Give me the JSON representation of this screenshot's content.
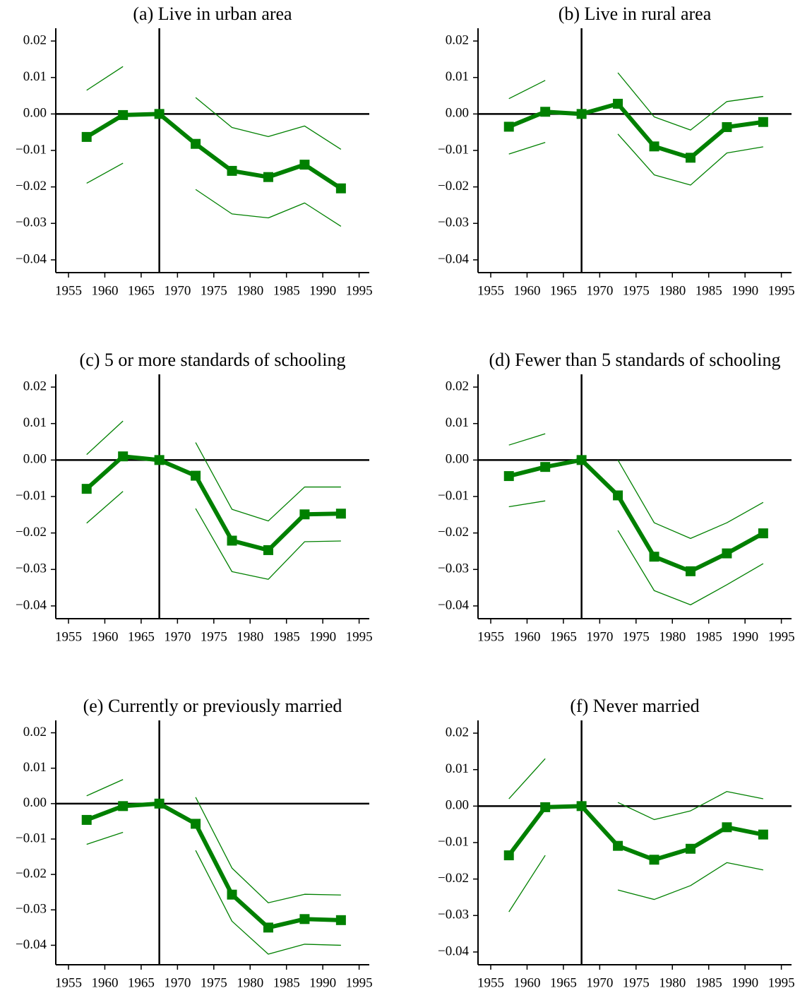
{
  "chart_data": [
    {
      "type": "line",
      "title": "(a) Live in urban area",
      "x": [
        1957.5,
        1962.5,
        1967.5,
        1972.5,
        1977.5,
        1982.5,
        1987.5,
        1992.5
      ],
      "series": [
        {
          "color": "#008000",
          "line_width": 6,
          "marker": "square",
          "values": [
            -0.0063,
            -0.0003,
            0,
            -0.0082,
            -0.0156,
            -0.0173,
            -0.0139,
            -0.0204
          ]
        },
        {
          "color": "#008000",
          "line_width": 1.3,
          "values": [
            0.0065,
            0.013,
            null,
            0.0045,
            -0.0037,
            -0.0062,
            -0.0033,
            -0.0097
          ]
        },
        {
          "color": "#008000",
          "line_width": 1.3,
          "values": [
            -0.019,
            -0.0135,
            null,
            -0.0207,
            -0.0274,
            -0.0285,
            -0.0244,
            -0.0308
          ]
        }
      ],
      "xlim": [
        1953.25,
        1996.4
      ],
      "xticks": [
        1955,
        1960,
        1965,
        1970,
        1975,
        1980,
        1985,
        1990,
        1995
      ],
      "ylim": [
        -0.0435,
        0.0235
      ],
      "yticks": [
        {
          "value": -0.04,
          "label": "−0.04"
        },
        {
          "value": -0.03,
          "label": "−0.03"
        },
        {
          "value": -0.02,
          "label": "−0.02"
        },
        {
          "value": -0.01,
          "label": "−0.01"
        },
        {
          "value": 0,
          "label": "0.00"
        },
        0.01,
        0.02
      ],
      "hline": 0,
      "vline": 1967.5
    },
    {
      "type": "line",
      "title": "(b) Live in rural area",
      "x": [
        1957.5,
        1962.5,
        1967.5,
        1972.5,
        1977.5,
        1982.5,
        1987.5,
        1992.5
      ],
      "series": [
        {
          "color": "#008000",
          "line_width": 6,
          "marker": "square",
          "values": [
            -0.0035,
            0.0006,
            0,
            0.0028,
            -0.0089,
            -0.012,
            -0.0036,
            -0.0022
          ]
        },
        {
          "color": "#008000",
          "line_width": 1.3,
          "values": [
            0.0042,
            0.0092,
            null,
            0.0113,
            -0.0008,
            -0.0044,
            0.0034,
            0.0048
          ]
        },
        {
          "color": "#008000",
          "line_width": 1.3,
          "values": [
            -0.011,
            -0.0078,
            null,
            -0.0055,
            -0.0167,
            -0.0195,
            -0.0107,
            -0.009
          ]
        }
      ],
      "xlim": [
        1953.25,
        1996.4
      ],
      "xticks": [
        1955,
        1960,
        1965,
        1970,
        1975,
        1980,
        1985,
        1990,
        1995
      ],
      "ylim": [
        -0.0435,
        0.0235
      ],
      "yticks": [
        {
          "value": -0.04,
          "label": "−0.04"
        },
        {
          "value": -0.03,
          "label": "−0.03"
        },
        {
          "value": -0.02,
          "label": "−0.02"
        },
        {
          "value": -0.01,
          "label": "−0.01"
        },
        {
          "value": 0,
          "label": "0.00"
        },
        0.01,
        0.02
      ],
      "hline": 0,
      "vline": 1967.5
    },
    {
      "type": "line",
      "title": "(c) 5 or more standards of schooling",
      "x": [
        1957.5,
        1962.5,
        1967.5,
        1972.5,
        1977.5,
        1982.5,
        1987.5,
        1992.5
      ],
      "series": [
        {
          "color": "#008000",
          "line_width": 6,
          "marker": "square",
          "values": [
            -0.0079,
            0.001,
            0,
            -0.0043,
            -0.0221,
            -0.0247,
            -0.0149,
            -0.0147
          ]
        },
        {
          "color": "#008000",
          "line_width": 1.3,
          "values": [
            0.0015,
            0.0107,
            null,
            0.0048,
            -0.0135,
            -0.0167,
            -0.0074,
            -0.0074
          ]
        },
        {
          "color": "#008000",
          "line_width": 1.3,
          "values": [
            -0.0173,
            -0.0086,
            null,
            -0.0133,
            -0.0306,
            -0.0327,
            -0.0224,
            -0.0222
          ]
        }
      ],
      "xlim": [
        1953.25,
        1996.4
      ],
      "xticks": [
        1955,
        1960,
        1965,
        1970,
        1975,
        1980,
        1985,
        1990,
        1995
      ],
      "ylim": [
        -0.0435,
        0.0235
      ],
      "yticks": [
        {
          "value": -0.04,
          "label": "−0.04"
        },
        {
          "value": -0.03,
          "label": "−0.03"
        },
        {
          "value": -0.02,
          "label": "−0.02"
        },
        {
          "value": -0.01,
          "label": "−0.01"
        },
        {
          "value": 0,
          "label": "0.00"
        },
        0.01,
        0.02
      ],
      "hline": 0,
      "vline": 1967.5
    },
    {
      "type": "line",
      "title": "(d) Fewer than 5 standards of schooling",
      "x": [
        1957.5,
        1962.5,
        1967.5,
        1972.5,
        1977.5,
        1982.5,
        1987.5,
        1992.5
      ],
      "series": [
        {
          "color": "#008000",
          "line_width": 6,
          "marker": "square",
          "values": [
            -0.0044,
            -0.0019,
            0,
            -0.0097,
            -0.0265,
            -0.0305,
            -0.0256,
            -0.0201
          ]
        },
        {
          "color": "#008000",
          "line_width": 1.3,
          "values": [
            0.0041,
            0.0072,
            null,
            0.0,
            -0.0172,
            -0.0215,
            -0.0172,
            -0.0116
          ]
        },
        {
          "color": "#008000",
          "line_width": 1.3,
          "values": [
            -0.0128,
            -0.0112,
            null,
            -0.0193,
            -0.0358,
            -0.0397,
            -0.0342,
            -0.0284
          ]
        }
      ],
      "xlim": [
        1953.25,
        1996.4
      ],
      "xticks": [
        1955,
        1960,
        1965,
        1970,
        1975,
        1980,
        1985,
        1990,
        1995
      ],
      "ylim": [
        -0.0435,
        0.0235
      ],
      "yticks": [
        {
          "value": -0.04,
          "label": "−0.04"
        },
        {
          "value": -0.03,
          "label": "−0.03"
        },
        {
          "value": -0.02,
          "label": "−0.02"
        },
        {
          "value": -0.01,
          "label": "−0.01"
        },
        {
          "value": 0,
          "label": "0.00"
        },
        0.01,
        0.02
      ],
      "hline": 0,
      "vline": 1967.5
    },
    {
      "type": "line",
      "title": "(e) Currently or previously married",
      "x": [
        1957.5,
        1962.5,
        1967.5,
        1972.5,
        1977.5,
        1982.5,
        1987.5,
        1992.5
      ],
      "series": [
        {
          "color": "#008000",
          "line_width": 6,
          "marker": "square",
          "values": [
            -0.0046,
            -0.0007,
            0,
            -0.0057,
            -0.0257,
            -0.035,
            -0.0326,
            -0.0329
          ]
        },
        {
          "color": "#008000",
          "line_width": 1.3,
          "values": [
            0.0022,
            0.0068,
            null,
            0.0018,
            -0.0182,
            -0.028,
            -0.0256,
            -0.0258
          ]
        },
        {
          "color": "#008000",
          "line_width": 1.3,
          "values": [
            -0.0115,
            -0.0081,
            null,
            -0.0132,
            -0.0332,
            -0.0425,
            -0.0397,
            -0.04
          ]
        }
      ],
      "xlim": [
        1953.25,
        1996.4
      ],
      "xticks": [
        1955,
        1960,
        1965,
        1970,
        1975,
        1980,
        1985,
        1990,
        1995
      ],
      "ylim": [
        -0.0455,
        0.0235
      ],
      "yticks": [
        {
          "value": -0.04,
          "label": "−0.04"
        },
        {
          "value": -0.03,
          "label": "−0.03"
        },
        {
          "value": -0.02,
          "label": "−0.02"
        },
        {
          "value": -0.01,
          "label": "−0.01"
        },
        {
          "value": 0,
          "label": "0.00"
        },
        0.01,
        0.02
      ],
      "hline": 0,
      "vline": 1967.5
    },
    {
      "type": "line",
      "title": "(f) Never married",
      "x": [
        1957.5,
        1962.5,
        1967.5,
        1972.5,
        1977.5,
        1982.5,
        1987.5,
        1992.5
      ],
      "series": [
        {
          "color": "#008000",
          "line_width": 6,
          "marker": "square",
          "values": [
            -0.0135,
            -0.0003,
            0,
            -0.0109,
            -0.0147,
            -0.0117,
            -0.0058,
            -0.0078
          ]
        },
        {
          "color": "#008000",
          "line_width": 1.3,
          "values": [
            0.002,
            0.013,
            null,
            0.001,
            -0.0037,
            -0.0013,
            0.004,
            0.002
          ]
        },
        {
          "color": "#008000",
          "line_width": 1.3,
          "values": [
            -0.029,
            -0.0135,
            null,
            -0.023,
            -0.0256,
            -0.0218,
            -0.0155,
            -0.0175
          ]
        }
      ],
      "xlim": [
        1953.25,
        1996.4
      ],
      "xticks": [
        1955,
        1960,
        1965,
        1970,
        1975,
        1980,
        1985,
        1990,
        1995
      ],
      "ylim": [
        -0.0435,
        0.0235
      ],
      "yticks": [
        {
          "value": -0.04,
          "label": "−0.04"
        },
        {
          "value": -0.03,
          "label": "−0.03"
        },
        {
          "value": -0.02,
          "label": "−0.02"
        },
        {
          "value": -0.01,
          "label": "−0.01"
        },
        {
          "value": 0,
          "label": "0.00"
        },
        0.01,
        0.02
      ],
      "hline": 0,
      "vline": 1967.5
    }
  ]
}
